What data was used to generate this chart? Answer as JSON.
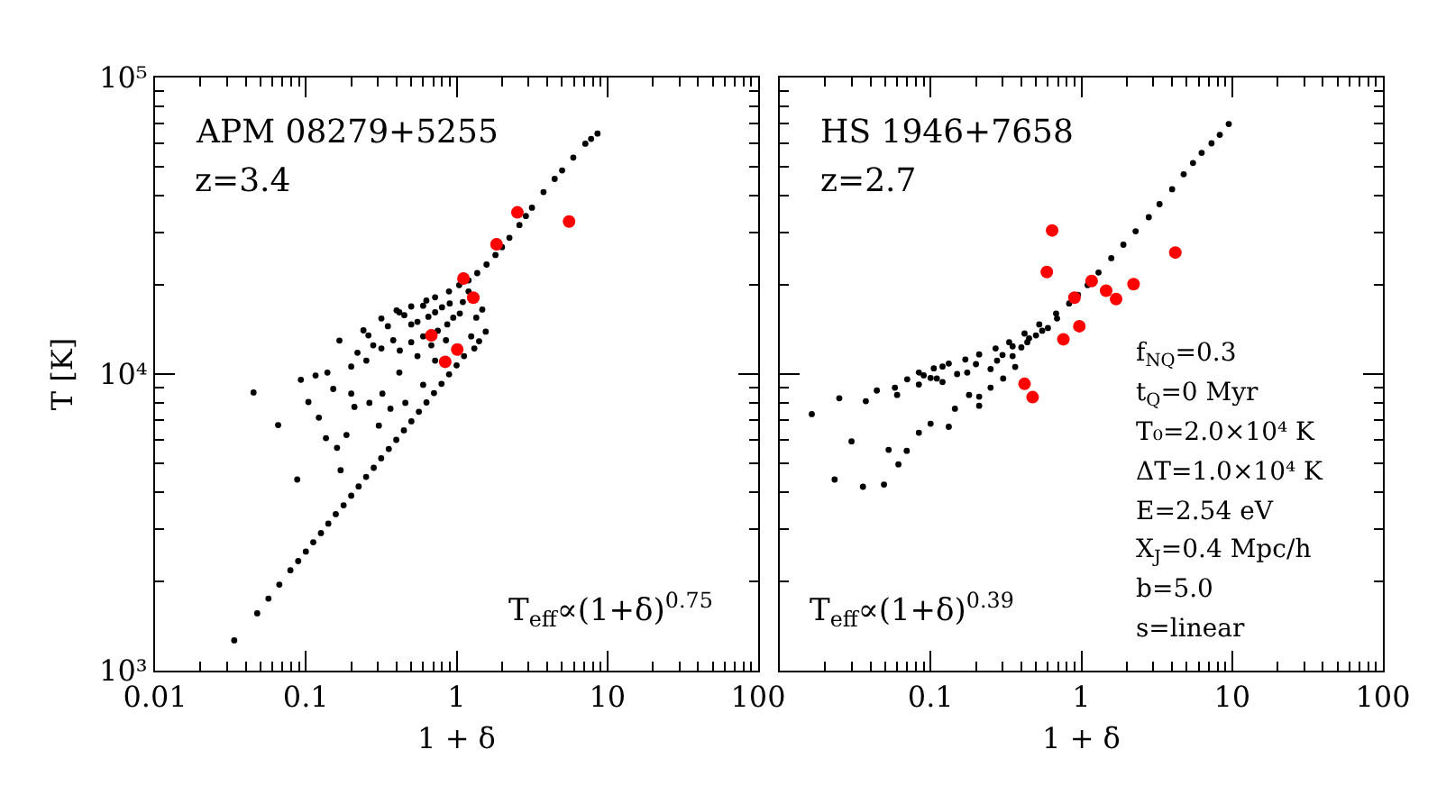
{
  "chart_data": [
    {
      "type": "scatter",
      "xlabel": "1 + δ",
      "ylabel": "T [K]",
      "annotations": [
        "APM 08279+5255",
        "z=3.4",
        "T$_{eff}$∝(1+δ)$^{0.75}$"
      ],
      "log": "xy",
      "marker": "circle",
      "xlim": [
        0.01,
        100
      ],
      "ylim": [
        1000,
        100000
      ],
      "xticks": [
        0.01,
        {
          "value": 0.02,
          "label": null
        },
        {
          "value": 0.03,
          "label": null
        },
        {
          "value": 0.04,
          "label": null
        },
        {
          "value": 0.05,
          "label": null
        },
        {
          "value": 0.06,
          "label": null
        },
        {
          "value": 0.07,
          "label": null
        },
        {
          "value": 0.08,
          "label": null
        },
        {
          "value": 0.09,
          "label": null
        },
        0.1,
        {
          "value": 0.2,
          "label": null
        },
        {
          "value": 0.3,
          "label": null
        },
        {
          "value": 0.4,
          "label": null
        },
        {
          "value": 0.5,
          "label": null
        },
        {
          "value": 0.6,
          "label": null
        },
        {
          "value": 0.7,
          "label": null
        },
        {
          "value": 0.8,
          "label": null
        },
        {
          "value": 0.9,
          "label": null
        },
        1,
        {
          "value": 2,
          "label": null
        },
        {
          "value": 3,
          "label": null
        },
        {
          "value": 4,
          "label": null
        },
        {
          "value": 5,
          "label": null
        },
        {
          "value": 6,
          "label": null
        },
        {
          "value": 7,
          "label": null
        },
        {
          "value": 8,
          "label": null
        },
        {
          "value": 9,
          "label": null
        },
        10,
        {
          "value": 20,
          "label": null
        },
        {
          "value": 30,
          "label": null
        },
        {
          "value": 40,
          "label": null
        },
        {
          "value": 50,
          "label": null
        },
        {
          "value": 60,
          "label": null
        },
        {
          "value": 70,
          "label": null
        },
        {
          "value": 80,
          "label": null
        },
        {
          "value": 90,
          "label": null
        },
        100
      ],
      "yticks": [
        {
          "value": 1000,
          "label": "10³"
        },
        {
          "value": 2000,
          "label": null
        },
        {
          "value": 3000,
          "label": null
        },
        {
          "value": 4000,
          "label": null
        },
        {
          "value": 5000,
          "label": null
        },
        {
          "value": 6000,
          "label": null
        },
        {
          "value": 7000,
          "label": null
        },
        {
          "value": 8000,
          "label": null
        },
        {
          "value": 9000,
          "label": null
        },
        {
          "value": 10000,
          "label": "10⁴"
        },
        {
          "value": 20000,
          "label": null
        },
        {
          "value": 30000,
          "label": null
        },
        {
          "value": 40000,
          "label": null
        },
        {
          "value": 50000,
          "label": null
        },
        {
          "value": 60000,
          "label": null
        },
        {
          "value": 70000,
          "label": null
        },
        {
          "value": 80000,
          "label": null
        },
        {
          "value": 90000,
          "label": null
        },
        {
          "value": 100000,
          "label": "10⁵"
        }
      ],
      "series": [
        {
          "color": "#000000",
          "x": [
            0.0335,
            0.0476,
            0.0565,
            0.0667,
            0.079,
            0.089,
            0.1,
            0.112,
            0.126,
            0.141,
            0.158,
            0.178,
            0.2,
            0.224,
            0.251,
            0.282,
            0.316,
            0.355,
            0.398,
            0.447,
            0.501,
            0.562,
            0.631,
            0.708,
            0.794,
            0.891,
            1.0,
            1.12,
            1.31,
            1.41,
            1.56,
            8.6,
            7.8,
            7.14,
            5.94,
            5.01,
            4.47,
            3.77,
            3.16,
            2.88,
            2.61,
            2.24,
            2.0,
            1.81,
            1.58,
            1.37,
            1.2,
            1.04,
            0.89,
            0.72,
            0.63,
            0.5,
            0.4,
            0.045,
            0.0655,
            0.0877,
            0.0927,
            0.104,
            0.116,
            0.122,
            0.136,
            0.139,
            0.152,
            0.161,
            0.167,
            0.17,
            0.186,
            0.2,
            0.2,
            0.21,
            0.22,
            0.241,
            0.252,
            0.26,
            0.264,
            0.28,
            0.305,
            0.317,
            0.317,
            0.322,
            0.35,
            0.364,
            0.38,
            0.417,
            0.417,
            0.42,
            0.45,
            0.457,
            0.5,
            0.5,
            0.55,
            0.55,
            0.6,
            0.6,
            0.6,
            0.65,
            0.68,
            0.72,
            0.72,
            0.75,
            0.8,
            0.85,
            0.867,
            0.9,
            0.95,
            1.05,
            1.1,
            1.2,
            1.25,
            1.35,
            1.48
          ],
          "values": [
            1265,
            1560,
            1750,
            1950,
            2180,
            2340,
            2520,
            2710,
            2910,
            3130,
            3370,
            3610,
            3890,
            4180,
            4500,
            4830,
            5200,
            5590,
            6000,
            6460,
            6930,
            7460,
            8020,
            8630,
            9270,
            9980,
            10700,
            11500,
            12200,
            12900,
            13900,
            64700,
            62100,
            59800,
            53700,
            48600,
            45500,
            41100,
            36400,
            34100,
            31800,
            28800,
            26800,
            25200,
            23400,
            21900,
            20700,
            19950,
            19000,
            18150,
            17700,
            16900,
            16400,
            8670,
            6730,
            4410,
            9570,
            8050,
            9890,
            7130,
            6080,
            10120,
            8910,
            5640,
            12970,
            4740,
            6230,
            8590,
            10600,
            7750,
            11800,
            14040,
            11100,
            13500,
            8000,
            12500,
            6700,
            12200,
            15400,
            8590,
            14500,
            7640,
            13000,
            10120,
            16150,
            12000,
            15800,
            8000,
            12800,
            14700,
            15000,
            11500,
            9200,
            13400,
            17000,
            15600,
            12500,
            11100,
            16150,
            14000,
            16800,
            13000,
            14700,
            17300,
            15500,
            16000,
            17500,
            19000,
            13400,
            15500,
            16500
          ]
        },
        {
          "color": "#ff0000",
          "x": [
            2.53,
            5.57,
            1.84,
            1.11,
            1.29,
            0.68,
            1.01,
            0.84
          ],
          "values": [
            35100,
            32700,
            27400,
            21000,
            18100,
            13500,
            12100,
            11000
          ]
        }
      ]
    },
    {
      "type": "scatter",
      "xlabel": "1 + δ",
      "annotations": [
        "HS 1946+7658",
        "z=2.7",
        "T$_{eff}$∝(1+δ)$^{0.39}$",
        "f$_{NQ}$=0.3",
        "t$_{Q}$=0 Myr",
        "T₀=2.0×10⁴ K",
        "ΔT=1.0×10⁴ K",
        "E=2.54 eV",
        "X$_{J}$=0.4 Mpc/h",
        "b=5.0",
        "s=linear"
      ],
      "log": "xy",
      "marker": "circle",
      "tick_labels": "x",
      "xlim": [
        0.01,
        100
      ],
      "ylim": [
        1000,
        100000
      ],
      "xticks": [
        {
          "value": 0.02,
          "label": null
        },
        {
          "value": 0.03,
          "label": null
        },
        {
          "value": 0.04,
          "label": null
        },
        {
          "value": 0.05,
          "label": null
        },
        {
          "value": 0.06,
          "label": null
        },
        {
          "value": 0.07,
          "label": null
        },
        {
          "value": 0.08,
          "label": null
        },
        {
          "value": 0.09,
          "label": null
        },
        0.1,
        {
          "value": 0.2,
          "label": null
        },
        {
          "value": 0.3,
          "label": null
        },
        {
          "value": 0.4,
          "label": null
        },
        {
          "value": 0.5,
          "label": null
        },
        {
          "value": 0.6,
          "label": null
        },
        {
          "value": 0.7,
          "label": null
        },
        {
          "value": 0.8,
          "label": null
        },
        {
          "value": 0.9,
          "label": null
        },
        1,
        {
          "value": 2,
          "label": null
        },
        {
          "value": 3,
          "label": null
        },
        {
          "value": 4,
          "label": null
        },
        {
          "value": 5,
          "label": null
        },
        {
          "value": 6,
          "label": null
        },
        {
          "value": 7,
          "label": null
        },
        {
          "value": 8,
          "label": null
        },
        {
          "value": 9,
          "label": null
        },
        10,
        {
          "value": 20,
          "label": null
        },
        {
          "value": 30,
          "label": null
        },
        {
          "value": 40,
          "label": null
        },
        {
          "value": 50,
          "label": null
        },
        {
          "value": 60,
          "label": null
        },
        {
          "value": 70,
          "label": null
        },
        {
          "value": 80,
          "label": null
        },
        {
          "value": 90,
          "label": null
        },
        100
      ],
      "yticks": [
        1000,
        {
          "value": 2000,
          "label": null
        },
        {
          "value": 3000,
          "label": null
        },
        {
          "value": 4000,
          "label": null
        },
        {
          "value": 5000,
          "label": null
        },
        {
          "value": 6000,
          "label": null
        },
        {
          "value": 7000,
          "label": null
        },
        {
          "value": 8000,
          "label": null
        },
        {
          "value": 9000,
          "label": null
        },
        10000,
        {
          "value": 20000,
          "label": null
        },
        {
          "value": 30000,
          "label": null
        },
        {
          "value": 40000,
          "label": null
        },
        {
          "value": 50000,
          "label": null
        },
        {
          "value": 60000,
          "label": null
        },
        {
          "value": 70000,
          "label": null
        },
        {
          "value": 80000,
          "label": null
        },
        {
          "value": 90000,
          "label": null
        },
        100000
      ],
      "series": [
        {
          "color": "#000000",
          "x": [
            9.5,
            8.28,
            7.3,
            6.28,
            5.5,
            4.77,
            4.0,
            3.3,
            2.8,
            2.29,
            1.9,
            1.58,
            1.3,
            1.1,
            0.95,
            0.83,
            0.68,
            0.526,
            0.42,
            0.332,
            0.27,
            0.21,
            0.17,
            0.132,
            0.105,
            0.0836,
            0.0163,
            0.0231,
            0.0356,
            0.0491,
            0.0299,
            0.0248,
            0.0372,
            0.0527,
            0.0612,
            0.0695,
            0.0836,
            0.1,
            0.132,
            0.044,
            0.058,
            0.0836,
            0.11,
            0.175,
            0.276,
            0.438,
            0.69,
            0.145,
            0.21,
            0.303,
            0.21,
            0.364,
            0.25,
            0.18,
            0.35,
            0.5,
            0.6,
            0.12,
            0.07,
            0.06,
            0.15,
            0.2,
            0.3,
            0.4,
            0.25,
            0.45,
            0.55,
            0.12,
            0.09,
            0.35,
            0.1
          ],
          "values": [
            69700,
            64100,
            60000,
            55700,
            51500,
            47200,
            42000,
            37400,
            33800,
            30300,
            27300,
            24600,
            22000,
            19950,
            18500,
            17300,
            16000,
            14700,
            13700,
            12800,
            12200,
            11650,
            11200,
            10850,
            10450,
            10120,
            7330,
            4410,
            4170,
            4240,
            5930,
            8290,
            8100,
            5550,
            4960,
            5510,
            6340,
            6800,
            6640,
            8800,
            9000,
            9220,
            9660,
            10120,
            11100,
            12800,
            15400,
            7640,
            7820,
            9660,
            8390,
            10570,
            9000,
            8500,
            11500,
            13500,
            14300,
            9400,
            9600,
            8500,
            10000,
            10800,
            11600,
            12300,
            10400,
            13200,
            14000,
            10600,
            9900,
            12400,
            9700
          ]
        },
        {
          "color": "#ff0000",
          "x": [
            0.64,
            0.59,
            4.2,
            1.17,
            0.9,
            1.46,
            1.7,
            2.22,
            0.97,
            0.76,
            0.42,
            0.475
          ],
          "values": [
            30500,
            22100,
            25700,
            20600,
            18100,
            19100,
            17900,
            20100,
            14500,
            13100,
            9270,
            8360
          ]
        }
      ]
    }
  ]
}
